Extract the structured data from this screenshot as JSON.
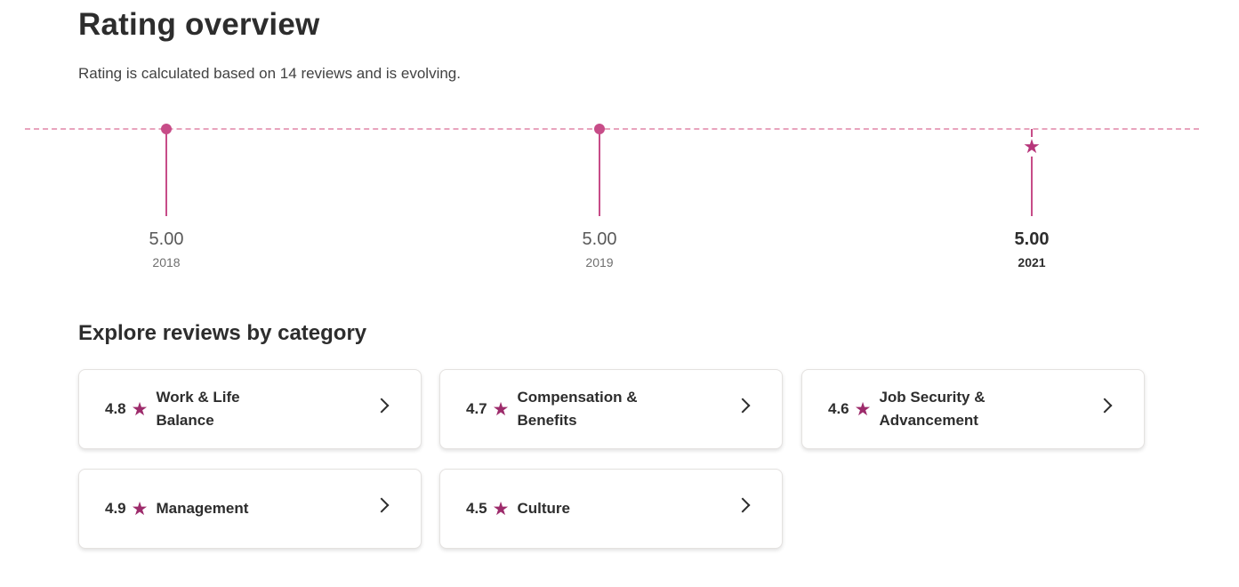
{
  "header": {
    "title": "Rating overview",
    "subtitle": "Rating is calculated based on 14 reviews and is evolving."
  },
  "timeline": {
    "points": [
      {
        "value": "5.00",
        "year": "2018",
        "marker": "dot"
      },
      {
        "value": "5.00",
        "year": "2019",
        "marker": "dot"
      },
      {
        "value": "5.00",
        "year": "2021",
        "marker": "star",
        "current": true
      }
    ],
    "accent_color": "#c74c88"
  },
  "categories": {
    "title": "Explore reviews by category",
    "items": [
      {
        "rating": "4.8",
        "label": "Work & Life Balance",
        "icon": "star-icon"
      },
      {
        "rating": "4.7",
        "label": "Compensation & Benefits",
        "icon": "star-icon"
      },
      {
        "rating": "4.6",
        "label": "Job Security & Advancement",
        "icon": "star-icon"
      },
      {
        "rating": "4.9",
        "label": "Management",
        "icon": "star-icon"
      },
      {
        "rating": "4.5",
        "label": "Culture",
        "icon": "star-icon"
      }
    ],
    "star_color": "#9d2b6b"
  }
}
